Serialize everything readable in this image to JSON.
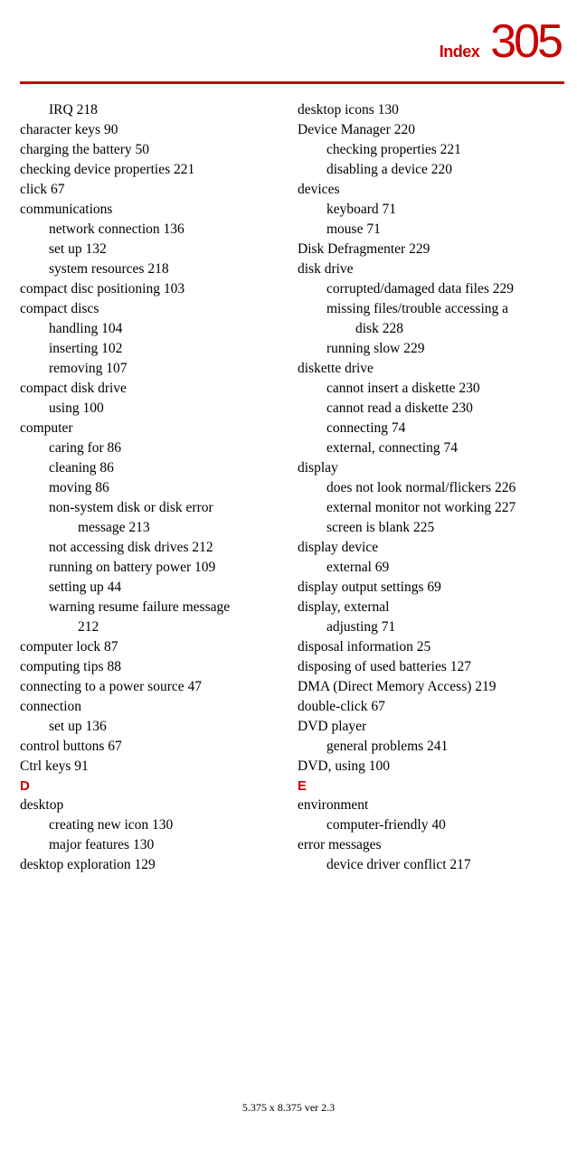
{
  "header": {
    "title": "Index",
    "page": "305"
  },
  "footer": "5.375 x 8.375 ver 2.3",
  "col1": [
    {
      "indent": 1,
      "text": "IRQ 218"
    },
    {
      "indent": 0,
      "text": "character keys 90"
    },
    {
      "indent": 0,
      "text": "charging the battery 50"
    },
    {
      "indent": 0,
      "text": "checking device properties 221"
    },
    {
      "indent": 0,
      "text": "click 67"
    },
    {
      "indent": 0,
      "text": "communications"
    },
    {
      "indent": 1,
      "text": "network connection 136"
    },
    {
      "indent": 1,
      "text": "set up 132"
    },
    {
      "indent": 1,
      "text": "system resources 218"
    },
    {
      "indent": 0,
      "text": "compact disc positioning 103"
    },
    {
      "indent": 0,
      "text": "compact discs"
    },
    {
      "indent": 1,
      "text": "handling 104"
    },
    {
      "indent": 1,
      "text": "inserting 102"
    },
    {
      "indent": 1,
      "text": "removing 107"
    },
    {
      "indent": 0,
      "text": "compact disk drive"
    },
    {
      "indent": 1,
      "text": "using 100"
    },
    {
      "indent": 0,
      "text": "computer"
    },
    {
      "indent": 1,
      "text": "caring for 86"
    },
    {
      "indent": 1,
      "text": "cleaning 86"
    },
    {
      "indent": 1,
      "text": "moving 86"
    },
    {
      "indent": 1,
      "text": "non-system disk or disk error"
    },
    {
      "indent": 2,
      "text": "message 213"
    },
    {
      "indent": 1,
      "text": "not accessing disk drives 212"
    },
    {
      "indent": 1,
      "text": "running on battery power 109"
    },
    {
      "indent": 1,
      "text": "setting up 44"
    },
    {
      "indent": 1,
      "text": "warning resume failure message"
    },
    {
      "indent": 2,
      "text": "212"
    },
    {
      "indent": 0,
      "text": "computer lock 87"
    },
    {
      "indent": 0,
      "text": "computing tips 88"
    },
    {
      "indent": 0,
      "text": "connecting to a power source 47"
    },
    {
      "indent": 0,
      "text": "connection"
    },
    {
      "indent": 1,
      "text": "set up 136"
    },
    {
      "indent": 0,
      "text": "control buttons 67"
    },
    {
      "indent": 0,
      "text": "Ctrl keys 91"
    },
    {
      "indent": 0,
      "letter": true,
      "text": "D"
    },
    {
      "indent": 0,
      "text": "desktop"
    },
    {
      "indent": 1,
      "text": "creating new icon 130"
    },
    {
      "indent": 1,
      "text": "major features 130"
    },
    {
      "indent": 0,
      "text": "desktop exploration 129"
    }
  ],
  "col2": [
    {
      "indent": 0,
      "text": "desktop icons 130"
    },
    {
      "indent": 0,
      "text": "Device Manager 220"
    },
    {
      "indent": 1,
      "text": "checking properties 221"
    },
    {
      "indent": 1,
      "text": "disabling a device 220"
    },
    {
      "indent": 0,
      "text": "devices"
    },
    {
      "indent": 1,
      "text": "keyboard 71"
    },
    {
      "indent": 1,
      "text": "mouse 71"
    },
    {
      "indent": 0,
      "text": "Disk Defragmenter 229"
    },
    {
      "indent": 0,
      "text": "disk drive"
    },
    {
      "indent": 1,
      "text": "corrupted/damaged data files 229"
    },
    {
      "indent": 1,
      "text": "missing files/trouble accessing a"
    },
    {
      "indent": 2,
      "text": "disk 228"
    },
    {
      "indent": 1,
      "text": "running slow 229"
    },
    {
      "indent": 0,
      "text": "diskette drive"
    },
    {
      "indent": 1,
      "text": "cannot insert a diskette 230"
    },
    {
      "indent": 1,
      "text": "cannot read a diskette 230"
    },
    {
      "indent": 1,
      "text": "connecting 74"
    },
    {
      "indent": 1,
      "text": "external, connecting 74"
    },
    {
      "indent": 0,
      "text": "display"
    },
    {
      "indent": 1,
      "text": "does not look normal/flickers 226"
    },
    {
      "indent": 1,
      "text": "external monitor not working 227"
    },
    {
      "indent": 1,
      "text": "screen is blank 225"
    },
    {
      "indent": 0,
      "text": "display device"
    },
    {
      "indent": 1,
      "text": "external 69"
    },
    {
      "indent": 0,
      "text": "display output settings 69"
    },
    {
      "indent": 0,
      "text": "display, external"
    },
    {
      "indent": 1,
      "text": "adjusting 71"
    },
    {
      "indent": 0,
      "text": "disposal information 25"
    },
    {
      "indent": 0,
      "text": "disposing of used batteries 127"
    },
    {
      "indent": 0,
      "text": "DMA (Direct Memory Access) 219"
    },
    {
      "indent": 0,
      "text": "double-click 67"
    },
    {
      "indent": 0,
      "text": "DVD player"
    },
    {
      "indent": 1,
      "text": "general problems 241"
    },
    {
      "indent": 0,
      "text": "DVD, using 100"
    },
    {
      "indent": 0,
      "letter": true,
      "text": "E"
    },
    {
      "indent": 0,
      "text": "environment"
    },
    {
      "indent": 1,
      "text": "computer-friendly 40"
    },
    {
      "indent": 0,
      "text": "error messages"
    },
    {
      "indent": 1,
      "text": "device driver conflict 217"
    }
  ]
}
